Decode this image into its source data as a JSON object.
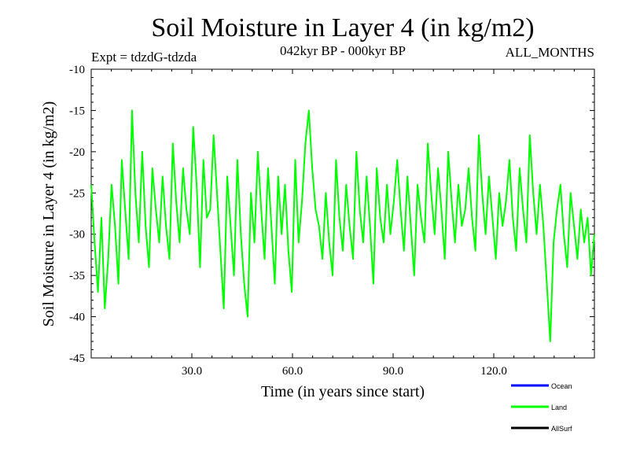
{
  "chart_data": {
    "type": "line",
    "title": "Soil Moisture in Layer 4 (in kg/m2)",
    "subtitle_left": "Expt = tdzdG-tdzda",
    "subtitle_center": "042kyr BP - 000kyr BP",
    "subtitle_right": "ALL_MONTHS",
    "xlabel": "Time (in years since start)",
    "ylabel": "Soil Moisture in Layer 4 (in kg/m2)",
    "xlim": [
      0,
      150
    ],
    "ylim": [
      -45,
      -10
    ],
    "x_ticks": [
      30,
      60,
      90,
      120
    ],
    "x_tick_labels": [
      "30.0",
      "60.0",
      "90.0",
      "120.0"
    ],
    "y_ticks": [
      -10,
      -15,
      -20,
      -25,
      -30,
      -35,
      -40,
      -45
    ],
    "y_tick_labels": [
      "-10",
      "-15",
      "-20",
      "-25",
      "-30",
      "-35",
      "-40",
      "-45"
    ],
    "series": [
      {
        "name": "Land",
        "color": "#00ff00",
        "x_start": 0,
        "x_step": 1,
        "values": [
          -24,
          -31,
          -37,
          -28,
          -39,
          -33,
          -24,
          -29,
          -36,
          -21,
          -27,
          -33,
          -15,
          -25,
          -31,
          -20,
          -29,
          -34,
          -22,
          -27,
          -31,
          -23,
          -29,
          -33,
          -19,
          -26,
          -31,
          -22,
          -27,
          -30,
          -17,
          -24,
          -34,
          -21,
          -28,
          -27,
          -18,
          -25,
          -32,
          -39,
          -23,
          -29,
          -35,
          -21,
          -30,
          -36,
          -40,
          -25,
          -31,
          -20,
          -27,
          -33,
          -22,
          -29,
          -36,
          -23,
          -30,
          -24,
          -32,
          -37,
          -21,
          -31,
          -26,
          -19,
          -15,
          -22,
          -27,
          -29,
          -33,
          -25,
          -31,
          -35,
          -21,
          -28,
          -32,
          -24,
          -29,
          -33,
          -20,
          -27,
          -31,
          -23,
          -29,
          -36,
          -22,
          -28,
          -31,
          -24,
          -30,
          -26,
          -21,
          -27,
          -32,
          -23,
          -29,
          -35,
          -24,
          -28,
          -31,
          -19,
          -25,
          -30,
          -22,
          -27,
          -33,
          -20,
          -26,
          -31,
          -24,
          -29,
          -27,
          -22,
          -28,
          -32,
          -18,
          -25,
          -30,
          -23,
          -28,
          -33,
          -25,
          -29,
          -26,
          -21,
          -28,
          -32,
          -22,
          -27,
          -31,
          -18,
          -25,
          -30,
          -24,
          -29,
          -36,
          -43,
          -31,
          -27,
          -24,
          -30,
          -34,
          -25,
          -29,
          -33,
          -27,
          -31,
          -28,
          -35,
          -30
        ]
      },
      {
        "name": "Ocean",
        "color": "#0000ff",
        "values": []
      },
      {
        "name": "AllSurf",
        "color": "#000000",
        "values": []
      }
    ],
    "legend": {
      "placement": "bottom-right",
      "entries": [
        {
          "label": "Ocean",
          "color": "#0000ff"
        },
        {
          "label": "Land",
          "color": "#00ff00"
        },
        {
          "label": "AllSurf",
          "color": "#000000"
        }
      ]
    }
  }
}
